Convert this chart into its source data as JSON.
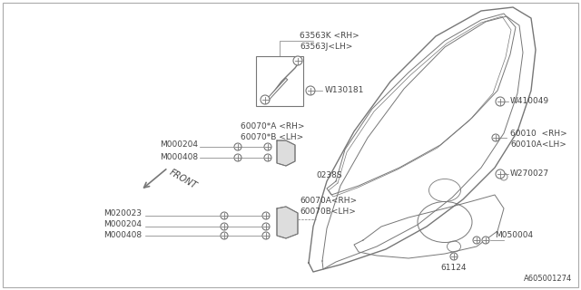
{
  "bg_color": "#ffffff",
  "border_color": "#888888",
  "line_color": "#777777",
  "part_color": "#444444",
  "footer_text": "A605001274",
  "labels": {
    "top_part1": "63563K <RH>",
    "top_part2": "63563J<LH>",
    "top_bolt": "W130181",
    "front_label": "FRONT",
    "mid_upper_part1": "60070*A <RH>",
    "mid_upper_part2": "60070*B <LH>",
    "mid_bolt1": "M000204",
    "mid_bolt2": "M000408",
    "mid_code": "0238S",
    "low_part1": "60070A<RH>",
    "low_part2": "60070B<LH>",
    "low_bolt1": "M020023",
    "low_bolt2": "M000204",
    "low_bolt3": "M000408",
    "right_top_bolt": "W410049",
    "right_main1": "60010  <RH>",
    "right_main2": "60010A<LH>",
    "right_mid_bolt": "W270027",
    "right_low_bolt": "M050004",
    "bottom_center": "61124"
  }
}
